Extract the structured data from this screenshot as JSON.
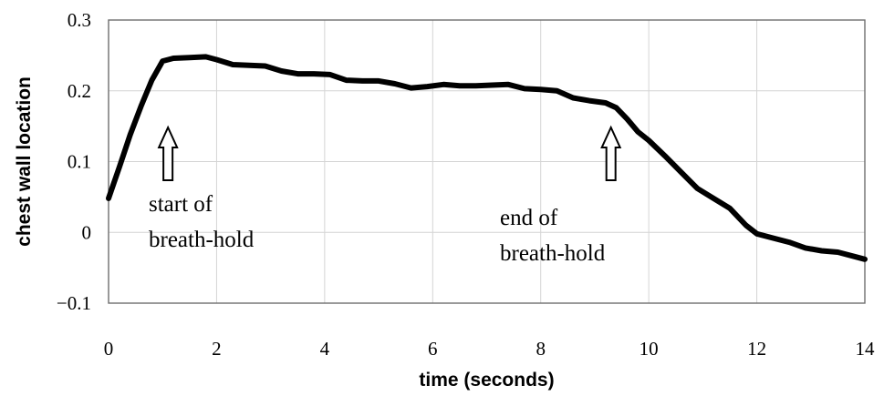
{
  "chart_data": {
    "type": "line",
    "title": "",
    "xlabel": "time (seconds)",
    "ylabel": "chest wall location",
    "xlim": [
      0,
      14
    ],
    "ylim": [
      -0.1,
      0.3
    ],
    "grid": true,
    "x_ticks": [
      "0",
      "2",
      "4",
      "6",
      "8",
      "10",
      "12",
      "14"
    ],
    "y_ticks": [
      "−0.1",
      "0",
      "0.1",
      "0.2",
      "0.3"
    ],
    "series": [
      {
        "color": "#000000",
        "x": [
          0,
          0.2,
          0.4,
          0.6,
          0.8,
          1.0,
          1.2,
          1.5,
          1.8,
          2.0,
          2.3,
          2.6,
          2.9,
          3.2,
          3.5,
          3.8,
          4.1,
          4.4,
          4.7,
          5.0,
          5.3,
          5.6,
          5.9,
          6.2,
          6.5,
          6.8,
          7.1,
          7.4,
          7.7,
          8.0,
          8.3,
          8.6,
          8.9,
          9.2,
          9.4,
          9.6,
          9.8,
          10.0,
          10.3,
          10.6,
          10.9,
          11.2,
          11.5,
          11.8,
          12.0,
          12.3,
          12.6,
          12.9,
          13.2,
          13.5,
          13.8,
          14.0
        ],
        "y": [
          0.048,
          0.092,
          0.138,
          0.178,
          0.215,
          0.242,
          0.246,
          0.247,
          0.248,
          0.244,
          0.237,
          0.236,
          0.235,
          0.228,
          0.224,
          0.224,
          0.223,
          0.215,
          0.214,
          0.214,
          0.21,
          0.204,
          0.206,
          0.209,
          0.207,
          0.207,
          0.208,
          0.209,
          0.203,
          0.202,
          0.2,
          0.19,
          0.186,
          0.183,
          0.176,
          0.16,
          0.142,
          0.13,
          0.108,
          0.085,
          0.062,
          0.048,
          0.034,
          0.01,
          -0.002,
          -0.008,
          -0.014,
          -0.022,
          -0.026,
          -0.028,
          -0.034,
          -0.038
        ]
      }
    ],
    "annotations": [
      {
        "lines": [
          "start of",
          "breath-hold"
        ],
        "arrow_x": 1.1
      },
      {
        "lines": [
          "end of",
          "breath-hold"
        ],
        "arrow_x": 9.3
      }
    ]
  }
}
